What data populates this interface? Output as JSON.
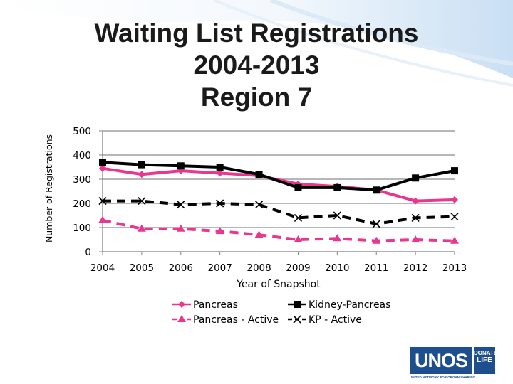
{
  "page": {
    "title_lines": [
      "Waiting List Registrations",
      "2004-2013",
      "Region 7"
    ]
  },
  "logo": {
    "main": "UNOS",
    "side_line1": "DONATE",
    "side_line2": "LIFE",
    "subtitle": "UNITED NETWORK FOR ORGAN SHARING"
  },
  "chart_data": {
    "type": "line",
    "title": "Waiting List Registrations 2004-2013 Region 7",
    "xlabel": "Year of Snapshot",
    "ylabel": "Number of Registrations",
    "categories": [
      "2004",
      "2005",
      "2006",
      "2007",
      "2008",
      "2009",
      "2010",
      "2011",
      "2012",
      "2013"
    ],
    "ylim": [
      0,
      500
    ],
    "yticks": [
      0,
      100,
      200,
      300,
      400,
      500
    ],
    "grid": "horizontal",
    "legend_position": "bottom",
    "series": [
      {
        "name": "Pancreas",
        "color": "#e8378f",
        "line": "solid",
        "marker": "diamond",
        "values": [
          345,
          320,
          335,
          325,
          315,
          280,
          270,
          255,
          210,
          215
        ]
      },
      {
        "name": "Kidney-Pancreas",
        "color": "#000000",
        "line": "solid",
        "marker": "square",
        "values": [
          370,
          360,
          355,
          350,
          320,
          265,
          265,
          255,
          305,
          335
        ]
      },
      {
        "name": "Pancreas - Active",
        "color": "#e8378f",
        "line": "dashed",
        "marker": "triangle",
        "values": [
          130,
          95,
          95,
          85,
          70,
          50,
          55,
          45,
          50,
          45
        ]
      },
      {
        "name": "KP - Active",
        "color": "#000000",
        "line": "dashed",
        "marker": "x",
        "values": [
          210,
          210,
          195,
          200,
          195,
          140,
          150,
          115,
          140,
          145
        ]
      }
    ]
  }
}
